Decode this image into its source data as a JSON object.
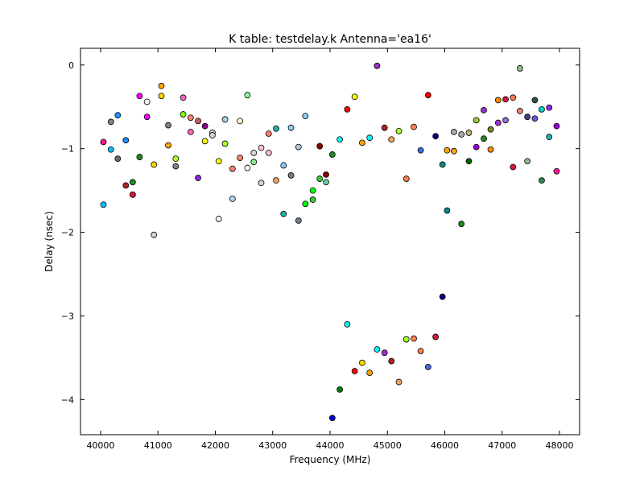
{
  "chart_data": {
    "type": "scatter",
    "title": "K table: testdelay.k       Antenna='ea16'",
    "xlabel": "Frequency (MHz)",
    "ylabel": "Delay (nsec)",
    "xlim": [
      39650,
      48350
    ],
    "ylim": [
      -4.42,
      0.2
    ],
    "xticks": [
      40000,
      41000,
      42000,
      43000,
      44000,
      45000,
      46000,
      47000,
      48000
    ],
    "yticks": [
      0,
      -1,
      -2,
      -3,
      -4
    ],
    "ytick_labels": [
      "0",
      "−1",
      "−2",
      "−3",
      "−4"
    ],
    "grid": false,
    "legend": "none",
    "points": [
      {
        "x": 40050,
        "y": -0.92,
        "color": "#ff1493"
      },
      {
        "x": 40050,
        "y": -1.67,
        "color": "#00bfff"
      },
      {
        "x": 40180,
        "y": -0.68,
        "color": "#808080"
      },
      {
        "x": 40180,
        "y": -1.01,
        "color": "#00bfff"
      },
      {
        "x": 40300,
        "y": -0.6,
        "color": "#1e90ff"
      },
      {
        "x": 40300,
        "y": -1.12,
        "color": "#696969"
      },
      {
        "x": 40440,
        "y": -0.9,
        "color": "#1e90ff"
      },
      {
        "x": 40440,
        "y": -1.44,
        "color": "#b22222"
      },
      {
        "x": 40560,
        "y": -1.4,
        "color": "#228b22"
      },
      {
        "x": 40560,
        "y": -1.55,
        "color": "#dc143c"
      },
      {
        "x": 40680,
        "y": -0.37,
        "color": "#ff00ff"
      },
      {
        "x": 40680,
        "y": -1.1,
        "color": "#228b22"
      },
      {
        "x": 40810,
        "y": -0.44,
        "color": "#ffffff"
      },
      {
        "x": 40810,
        "y": -0.62,
        "color": "#ff00ff"
      },
      {
        "x": 40930,
        "y": -1.19,
        "color": "#ffd700"
      },
      {
        "x": 40930,
        "y": -2.03,
        "color": "#d3d3d3"
      },
      {
        "x": 41060,
        "y": -0.25,
        "color": "#ffa500"
      },
      {
        "x": 41060,
        "y": -0.37,
        "color": "#ffd700"
      },
      {
        "x": 41180,
        "y": -0.72,
        "color": "#808080"
      },
      {
        "x": 41180,
        "y": -0.96,
        "color": "#ffa500"
      },
      {
        "x": 41310,
        "y": -1.12,
        "color": "#adff2f"
      },
      {
        "x": 41310,
        "y": -1.21,
        "color": "#808080"
      },
      {
        "x": 41440,
        "y": -0.39,
        "color": "#ff69b4"
      },
      {
        "x": 41440,
        "y": -0.59,
        "color": "#7fff00"
      },
      {
        "x": 41570,
        "y": -0.63,
        "color": "#fa8072"
      },
      {
        "x": 41570,
        "y": -0.8,
        "color": "#ff69b4"
      },
      {
        "x": 41700,
        "y": -0.67,
        "color": "#cd5c5c"
      },
      {
        "x": 41700,
        "y": -1.35,
        "color": "#8a2be2"
      },
      {
        "x": 41820,
        "y": -0.73,
        "color": "#8b008b"
      },
      {
        "x": 41820,
        "y": -0.91,
        "color": "#ffff00"
      },
      {
        "x": 41950,
        "y": -0.81,
        "color": "#d3d3d3"
      },
      {
        "x": 41950,
        "y": -0.84,
        "color": "#d3d3d3"
      },
      {
        "x": 42060,
        "y": -1.15,
        "color": "#ffff00"
      },
      {
        "x": 42060,
        "y": -1.84,
        "color": "#f5f5f5"
      },
      {
        "x": 42170,
        "y": -0.65,
        "color": "#add8e6"
      },
      {
        "x": 42170,
        "y": -0.94,
        "color": "#adff2f"
      },
      {
        "x": 42300,
        "y": -1.24,
        "color": "#fa8072"
      },
      {
        "x": 42300,
        "y": -1.6,
        "color": "#add8e6"
      },
      {
        "x": 42430,
        "y": -0.67,
        "color": "#fffacd"
      },
      {
        "x": 42430,
        "y": -1.11,
        "color": "#fa8072"
      },
      {
        "x": 42560,
        "y": -0.36,
        "color": "#98fb98"
      },
      {
        "x": 42560,
        "y": -1.23,
        "color": "#fffff0"
      },
      {
        "x": 42670,
        "y": -1.05,
        "color": "#d3d3d3"
      },
      {
        "x": 42670,
        "y": -1.16,
        "color": "#90ee90"
      },
      {
        "x": 42800,
        "y": -0.99,
        "color": "#ffc0cb"
      },
      {
        "x": 42800,
        "y": -1.41,
        "color": "#d3d3d3"
      },
      {
        "x": 42930,
        "y": -0.82,
        "color": "#fa8072"
      },
      {
        "x": 42930,
        "y": -1.05,
        "color": "#ffc0cb"
      },
      {
        "x": 43060,
        "y": -0.76,
        "color": "#20b2aa"
      },
      {
        "x": 43060,
        "y": -1.38,
        "color": "#f4a460"
      },
      {
        "x": 43190,
        "y": -1.2,
        "color": "#87cefa"
      },
      {
        "x": 43190,
        "y": -1.78,
        "color": "#20b2aa"
      },
      {
        "x": 43320,
        "y": -0.75,
        "color": "#87ceeb"
      },
      {
        "x": 43320,
        "y": -1.32,
        "color": "#708090"
      },
      {
        "x": 43450,
        "y": -0.98,
        "color": "#b0c4de"
      },
      {
        "x": 43450,
        "y": -1.86,
        "color": "#708090"
      },
      {
        "x": 43570,
        "y": -0.61,
        "color": "#87ceeb"
      },
      {
        "x": 43570,
        "y": -1.66,
        "color": "#00ff00"
      },
      {
        "x": 43700,
        "y": -1.5,
        "color": "#00ff00"
      },
      {
        "x": 43700,
        "y": -1.61,
        "color": "#32cd32"
      },
      {
        "x": 43820,
        "y": -0.97,
        "color": "#8b0000"
      },
      {
        "x": 43820,
        "y": -1.36,
        "color": "#32cd32"
      },
      {
        "x": 43930,
        "y": -1.31,
        "color": "#8b0000"
      },
      {
        "x": 43930,
        "y": -1.4,
        "color": "#66cdaa"
      },
      {
        "x": 44040,
        "y": -1.07,
        "color": "#228b22"
      },
      {
        "x": 44040,
        "y": -4.22,
        "color": "#0000cd"
      },
      {
        "x": 44170,
        "y": -0.89,
        "color": "#00ffff"
      },
      {
        "x": 44170,
        "y": -3.88,
        "color": "#008000"
      },
      {
        "x": 44300,
        "y": -0.53,
        "color": "#ff0000"
      },
      {
        "x": 44300,
        "y": -3.1,
        "color": "#00ffff"
      },
      {
        "x": 44430,
        "y": -0.38,
        "color": "#ffff00"
      },
      {
        "x": 44430,
        "y": -3.66,
        "color": "#ff0000"
      },
      {
        "x": 44560,
        "y": -0.93,
        "color": "#ffa500"
      },
      {
        "x": 44560,
        "y": -3.56,
        "color": "#ffd700"
      },
      {
        "x": 44690,
        "y": -0.87,
        "color": "#00ffff"
      },
      {
        "x": 44690,
        "y": -3.68,
        "color": "#ffa500"
      },
      {
        "x": 44820,
        "y": -0.01,
        "color": "#9932cc"
      },
      {
        "x": 44820,
        "y": -3.4,
        "color": "#00ffff"
      },
      {
        "x": 44950,
        "y": -0.75,
        "color": "#b22222"
      },
      {
        "x": 44950,
        "y": -3.44,
        "color": "#9932cc"
      },
      {
        "x": 45070,
        "y": -0.89,
        "color": "#f4a460"
      },
      {
        "x": 45070,
        "y": -3.54,
        "color": "#b22222"
      },
      {
        "x": 45200,
        "y": -0.79,
        "color": "#adff2f"
      },
      {
        "x": 45200,
        "y": -3.79,
        "color": "#f4a460"
      },
      {
        "x": 45330,
        "y": -1.36,
        "color": "#ff7f50"
      },
      {
        "x": 45330,
        "y": -3.28,
        "color": "#adff2f"
      },
      {
        "x": 45460,
        "y": -0.74,
        "color": "#ff7f50"
      },
      {
        "x": 45460,
        "y": -3.27,
        "color": "#ff7f50"
      },
      {
        "x": 45580,
        "y": -1.02,
        "color": "#4169e1"
      },
      {
        "x": 45580,
        "y": -3.42,
        "color": "#ff7f50"
      },
      {
        "x": 45710,
        "y": -0.36,
        "color": "#ff0000"
      },
      {
        "x": 45710,
        "y": -3.61,
        "color": "#4169e1"
      },
      {
        "x": 45840,
        "y": -0.85,
        "color": "#000080"
      },
      {
        "x": 45840,
        "y": -3.25,
        "color": "#dc143c"
      },
      {
        "x": 45960,
        "y": -1.19,
        "color": "#008b8b"
      },
      {
        "x": 45960,
        "y": -2.77,
        "color": "#000080"
      },
      {
        "x": 46040,
        "y": -1.02,
        "color": "#ffa500"
      },
      {
        "x": 46040,
        "y": -1.74,
        "color": "#008b8b"
      },
      {
        "x": 46160,
        "y": -0.8,
        "color": "#a9a9a9"
      },
      {
        "x": 46160,
        "y": -1.03,
        "color": "#ffa500"
      },
      {
        "x": 46290,
        "y": -0.83,
        "color": "#a9a9a9"
      },
      {
        "x": 46290,
        "y": -1.9,
        "color": "#228b22"
      },
      {
        "x": 46420,
        "y": -0.81,
        "color": "#bdb76b"
      },
      {
        "x": 46420,
        "y": -1.15,
        "color": "#006400"
      },
      {
        "x": 46550,
        "y": -0.66,
        "color": "#9acd32"
      },
      {
        "x": 46550,
        "y": -0.98,
        "color": "#9400d3"
      },
      {
        "x": 46680,
        "y": -0.54,
        "color": "#9932cc"
      },
      {
        "x": 46680,
        "y": -0.88,
        "color": "#228b22"
      },
      {
        "x": 46800,
        "y": -0.77,
        "color": "#6b8e23"
      },
      {
        "x": 46800,
        "y": -1.01,
        "color": "#ff8c00"
      },
      {
        "x": 46930,
        "y": -0.42,
        "color": "#ff8c00"
      },
      {
        "x": 46930,
        "y": -0.69,
        "color": "#9932cc"
      },
      {
        "x": 47060,
        "y": -0.41,
        "color": "#dc143c"
      },
      {
        "x": 47060,
        "y": -0.66,
        "color": "#9370db"
      },
      {
        "x": 47190,
        "y": -0.39,
        "color": "#ff7f50"
      },
      {
        "x": 47190,
        "y": -1.22,
        "color": "#dc143c"
      },
      {
        "x": 47310,
        "y": -0.04,
        "color": "#8fbc8f"
      },
      {
        "x": 47310,
        "y": -0.55,
        "color": "#f08080"
      },
      {
        "x": 47440,
        "y": -0.62,
        "color": "#483d8b"
      },
      {
        "x": 47440,
        "y": -1.15,
        "color": "#8fbc8f"
      },
      {
        "x": 47570,
        "y": -0.42,
        "color": "#2f4f4f"
      },
      {
        "x": 47570,
        "y": -0.64,
        "color": "#6a5acd"
      },
      {
        "x": 47690,
        "y": -0.53,
        "color": "#00ced1"
      },
      {
        "x": 47690,
        "y": -1.38,
        "color": "#2e8b57"
      },
      {
        "x": 47820,
        "y": -0.51,
        "color": "#8a2be2"
      },
      {
        "x": 47820,
        "y": -0.86,
        "color": "#20b2aa"
      },
      {
        "x": 47950,
        "y": -0.73,
        "color": "#9400d3"
      },
      {
        "x": 47950,
        "y": -1.27,
        "color": "#ff1493"
      }
    ]
  }
}
